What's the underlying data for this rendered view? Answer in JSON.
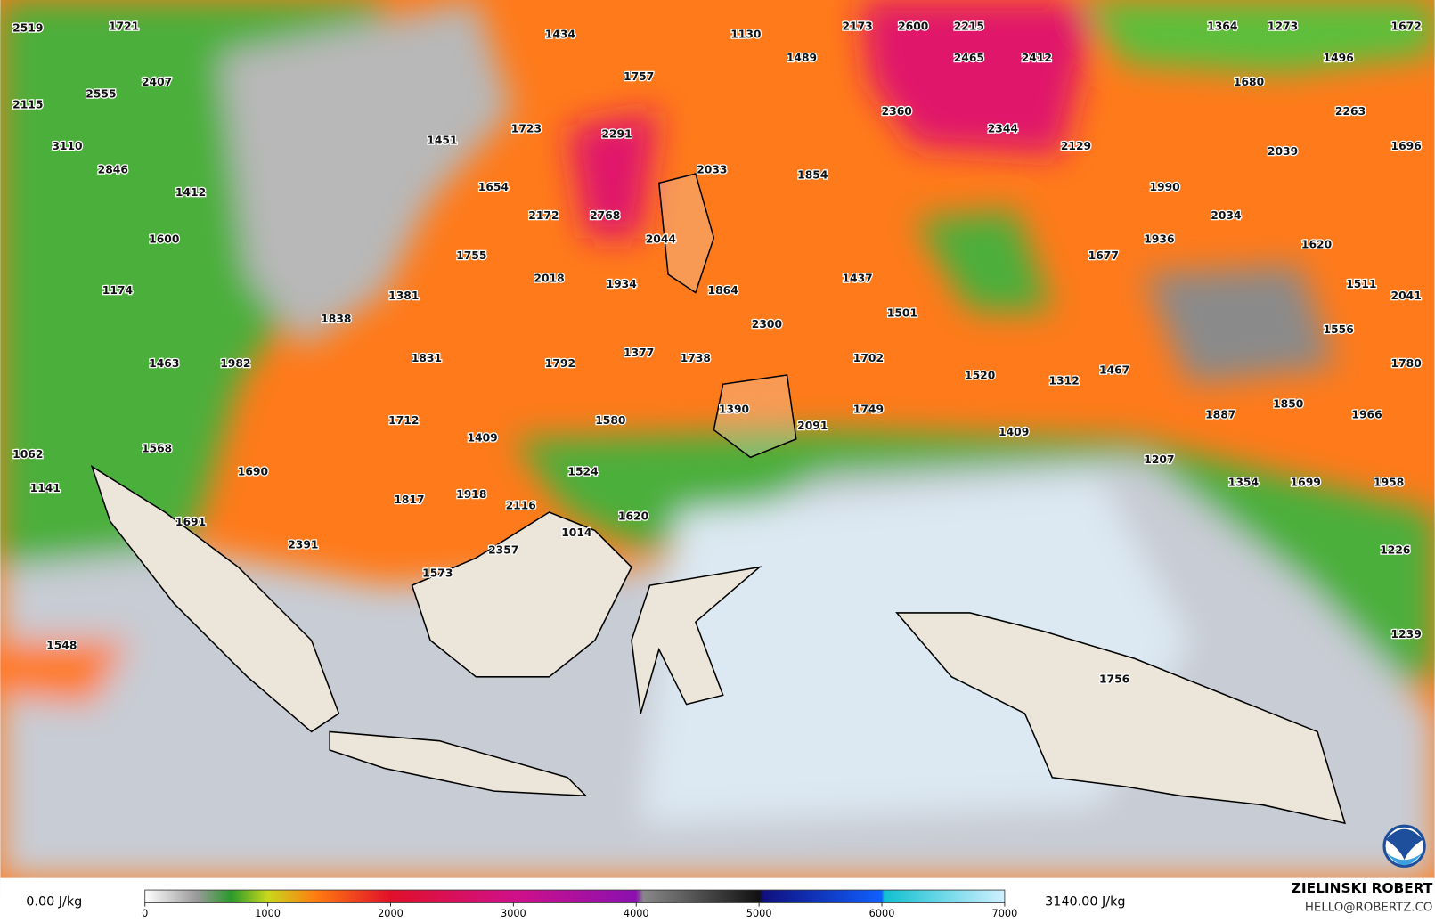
{
  "map": {
    "labels": [
      2519,
      1721,
      1434,
      1130,
      2173,
      2600,
      2215,
      1364,
      1273,
      1672,
      2555,
      2407,
      1489,
      2465,
      2412,
      1680,
      1496,
      2115,
      1757,
      2360,
      2263,
      3110,
      1451,
      1723,
      2291,
      2344,
      2129,
      2039,
      1696,
      2846,
      2033,
      1854,
      1990,
      1412,
      1654,
      2172,
      2768,
      2034,
      1600,
      2044,
      1936,
      1620,
      1755,
      1677,
      1174,
      2018,
      1934,
      1437,
      1864,
      1511,
      2041,
      1381,
      1501,
      1838,
      2300,
      1556,
      1463,
      1982,
      1831,
      1792,
      1377,
      1738,
      1702,
      1780,
      1520,
      1312,
      1467,
      1390,
      1850,
      1749,
      1887,
      1966,
      1712,
      2091,
      1580,
      1409,
      1409,
      1062,
      1568,
      1207,
      1690,
      1524,
      1141,
      1354,
      1699,
      1958,
      1817,
      1918,
      2116,
      1620,
      1691,
      1014,
      2391,
      2357,
      1226,
      1573,
      1548,
      1239,
      1756
    ]
  },
  "colorbar": {
    "range": [
      0,
      7000
    ],
    "ticks": [
      0,
      1000,
      2000,
      3000,
      4000,
      5000,
      6000,
      7000
    ],
    "min_label": "0.00 J/kg",
    "max_label": "3140.00 J/kg"
  },
  "branding": {
    "author": "ZIELINSKI ROBERT",
    "contact": "HELLO@ROBERTZ.CO"
  }
}
